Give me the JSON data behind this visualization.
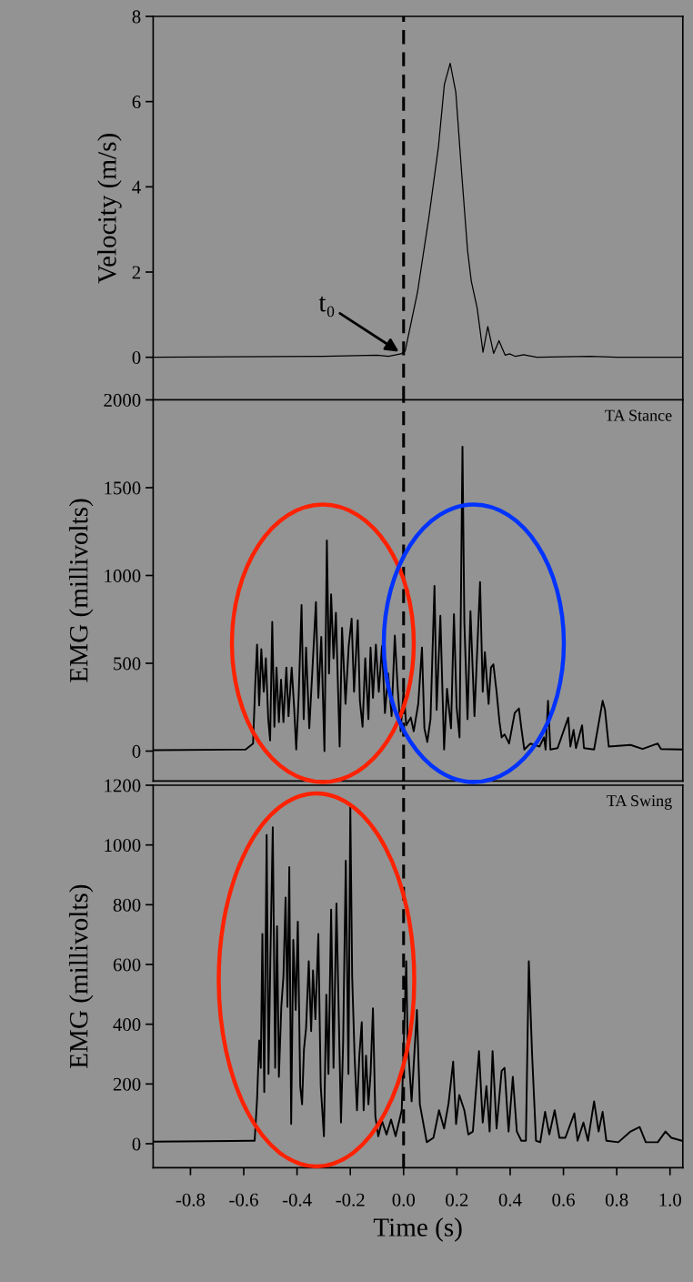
{
  "chart_data": [
    {
      "type": "line",
      "ylabel": "Velocity (m/s)",
      "xlim": [
        -0.94,
        1.048
      ],
      "ylim": [
        -1,
        8
      ],
      "yticks": [
        0,
        2,
        4,
        6,
        8
      ],
      "tick_labels": "y",
      "x": [
        -0.94,
        -0.3,
        -0.1,
        -0.057,
        -0.01,
        0.006,
        0.052,
        0.096,
        0.131,
        0.153,
        0.175,
        0.196,
        0.218,
        0.24,
        0.254,
        0.276,
        0.298,
        0.316,
        0.338,
        0.358,
        0.381,
        0.398,
        0.42,
        0.45,
        0.5,
        0.7,
        0.8,
        1.048
      ],
      "series": [
        {
          "color": "#000000",
          "values": [
            0,
            0.02,
            0.05,
            0.02,
            0.08,
            0.15,
            1.52,
            3.33,
            4.95,
            6.4,
            6.9,
            6.22,
            4.32,
            2.51,
            1.79,
            1.16,
            0.12,
            0.72,
            0.09,
            0.39,
            0.05,
            0.08,
            0.02,
            0.06,
            0,
            0.02,
            0,
            0
          ]
        }
      ],
      "ref_lines": [
        {
          "axis": "x",
          "value": 0,
          "color": "#000000",
          "line_style": "dashed"
        }
      ],
      "annotations": [
        {
          "text": "t₀",
          "x": -0.01,
          "y": 0.1
        }
      ]
    },
    {
      "type": "line",
      "ylabel": "EMG (millivolts)",
      "xlim": [
        -0.94,
        1.048
      ],
      "ylim": [
        -170,
        2000
      ],
      "yticks": [
        0,
        500,
        1000,
        1500,
        2000
      ],
      "tick_labels": "y",
      "x": [
        -0.94,
        -0.593,
        -0.565,
        -0.557,
        -0.55,
        -0.542,
        -0.534,
        -0.525,
        -0.517,
        -0.508,
        -0.501,
        -0.493,
        -0.485,
        -0.477,
        -0.468,
        -0.46,
        -0.451,
        -0.44,
        -0.432,
        -0.42,
        -0.411,
        -0.403,
        -0.394,
        -0.383,
        -0.375,
        -0.366,
        -0.354,
        -0.343,
        -0.329,
        -0.32,
        -0.309,
        -0.297,
        -0.288,
        -0.28,
        -0.272,
        -0.263,
        -0.254,
        -0.24,
        -0.231,
        -0.218,
        -0.206,
        -0.195,
        -0.186,
        -0.172,
        -0.164,
        -0.154,
        -0.144,
        -0.132,
        -0.124,
        -0.115,
        -0.104,
        -0.093,
        -0.081,
        -0.07,
        -0.058,
        -0.045,
        -0.033,
        -0.022,
        -0.011,
        0.0,
        0.01,
        0.027,
        0.038,
        0.055,
        0.069,
        0.078,
        0.089,
        0.101,
        0.116,
        0.124,
        0.138,
        0.152,
        0.163,
        0.178,
        0.189,
        0.199,
        0.21,
        0.221,
        0.228,
        0.24,
        0.251,
        0.266,
        0.287,
        0.297,
        0.305,
        0.319,
        0.328,
        0.337,
        0.349,
        0.36,
        0.368,
        0.379,
        0.396,
        0.417,
        0.433,
        0.442,
        0.453,
        0.476,
        0.51,
        0.527,
        0.533,
        0.542,
        0.551,
        0.578,
        0.618,
        0.626,
        0.638,
        0.647,
        0.67,
        0.677,
        0.715,
        0.747,
        0.756,
        0.77,
        0.852,
        0.897,
        0.954,
        0.966,
        1.045
      ],
      "series": [
        {
          "color": "#000000",
          "values": [
            5,
            9,
            43,
            372,
            606,
            260,
            580,
            338,
            528,
            182,
            61,
            736,
            139,
            476,
            165,
            407,
            165,
            476,
            199,
            476,
            251,
            9,
            303,
            832,
            182,
            589,
            130,
            442,
            849,
            303,
            650,
            0,
            1200,
            442,
            892,
            528,
            788,
            26,
            702,
            269,
            598,
            754,
            338,
            745,
            286,
            139,
            528,
            182,
            589,
            303,
            606,
            338,
            598,
            217,
            442,
            199,
            658,
            355,
            113,
            350,
            147,
            191,
            113,
            269,
            589,
            130,
            52,
            182,
            941,
            234,
            771,
            9,
            355,
            130,
            780,
            251,
            78,
            1733,
            736,
            182,
            797,
            199,
            962,
            338,
            563,
            269,
            476,
            494,
            338,
            165,
            78,
            95,
            43,
            217,
            243,
            130,
            9,
            43,
            26,
            78,
            9,
            286,
            9,
            17,
            191,
            26,
            121,
            17,
            147,
            17,
            9,
            286,
            234,
            26,
            35,
            12,
            43,
            12,
            9
          ]
        }
      ],
      "ref_lines": [
        {
          "axis": "x",
          "value": 0,
          "color": "#000000",
          "line_style": "dashed"
        }
      ],
      "annotations": [
        "TA Stance"
      ]
    },
    {
      "type": "line",
      "xlabel": "Time (s)",
      "ylabel": "EMG (millivolts)",
      "xlim": [
        -0.94,
        1.048
      ],
      "ylim": [
        -80,
        1200
      ],
      "xticks": [
        {
          "value": -0.8,
          "label": "-0.8"
        },
        {
          "value": -0.6,
          "label": "-0.6"
        },
        {
          "value": -0.4,
          "label": "-0.4"
        },
        {
          "value": -0.2,
          "label": "-0.2"
        },
        {
          "value": 0,
          "label": "0.0"
        },
        {
          "value": 0.2,
          "label": "0.2"
        },
        {
          "value": 0.4,
          "label": "0.4"
        },
        {
          "value": 0.6,
          "label": "0.6"
        },
        {
          "value": 0.8,
          "label": "0.8"
        },
        {
          "value": 1,
          "label": "1.0"
        }
      ],
      "yticks": [
        0,
        200,
        400,
        600,
        800,
        1000,
        1200
      ],
      "x": [
        -0.94,
        -0.571,
        -0.559,
        -0.55,
        -0.542,
        -0.536,
        -0.53,
        -0.523,
        -0.514,
        -0.507,
        -0.5,
        -0.491,
        -0.482,
        -0.475,
        -0.468,
        -0.459,
        -0.451,
        -0.443,
        -0.436,
        -0.429,
        -0.422,
        -0.414,
        -0.405,
        -0.397,
        -0.388,
        -0.381,
        -0.374,
        -0.366,
        -0.356,
        -0.347,
        -0.34,
        -0.331,
        -0.32,
        -0.311,
        -0.299,
        -0.29,
        -0.282,
        -0.272,
        -0.263,
        -0.252,
        -0.243,
        -0.235,
        -0.227,
        -0.217,
        -0.207,
        -0.2,
        -0.193,
        -0.184,
        -0.175,
        -0.166,
        -0.157,
        -0.15,
        -0.141,
        -0.132,
        -0.124,
        -0.115,
        -0.106,
        -0.095,
        -0.081,
        -0.064,
        -0.047,
        -0.03,
        -0.007,
        0.01,
        0.015,
        0.03,
        0.05,
        0.061,
        0.087,
        0.112,
        0.133,
        0.152,
        0.169,
        0.186,
        0.197,
        0.209,
        0.228,
        0.243,
        0.26,
        0.283,
        0.297,
        0.311,
        0.323,
        0.334,
        0.349,
        0.368,
        0.379,
        0.394,
        0.41,
        0.425,
        0.442,
        0.459,
        0.47,
        0.482,
        0.497,
        0.513,
        0.531,
        0.547,
        0.567,
        0.585,
        0.607,
        0.641,
        0.653,
        0.675,
        0.692,
        0.715,
        0.732,
        0.747,
        0.761,
        0.806,
        0.852,
        0.886,
        0.909,
        0.954,
        0.983,
        1.005,
        1.045
      ],
      "series": [
        {
          "color": "#000000",
          "values": [
            7,
            10,
            10,
            148,
            346,
            254,
            702,
            173,
            1033,
            234,
            621,
            1059,
            254,
            728,
            224,
            458,
            560,
            824,
            458,
            926,
            66,
            682,
            448,
            743,
            193,
            132,
            316,
            387,
            611,
            377,
            580,
            417,
            702,
            193,
            25,
            499,
            234,
            784,
            254,
            804,
            417,
            71,
            336,
            947,
            234,
            1135,
            560,
            295,
            112,
            295,
            407,
            112,
            295,
            132,
            234,
            453,
            92,
            25,
            76,
            31,
            81,
            25,
            112,
            611,
            346,
            142,
            448,
            132,
            5,
            20,
            112,
            51,
            137,
            275,
            66,
            163,
            112,
            31,
            41,
            310,
            71,
            193,
            41,
            310,
            51,
            244,
            254,
            41,
            224,
            41,
            10,
            10,
            611,
            305,
            10,
            5,
            107,
            31,
            112,
            20,
            20,
            102,
            10,
            71,
            10,
            142,
            41,
            107,
            10,
            5,
            41,
            56,
            5,
            5,
            41,
            20,
            10
          ]
        }
      ],
      "ref_lines": [
        {
          "axis": "x",
          "value": 0,
          "color": "#000000",
          "line_style": "dashed"
        }
      ],
      "annotations": [
        "TA Swing"
      ]
    }
  ]
}
